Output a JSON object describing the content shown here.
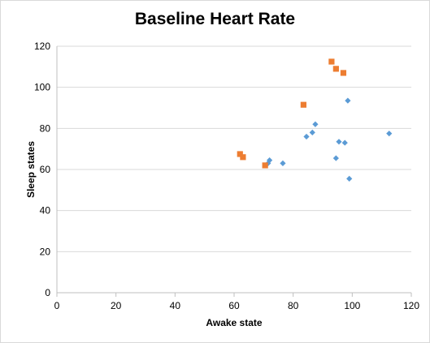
{
  "chart_data": {
    "type": "scatter",
    "title": "Baseline Heart Rate",
    "xlabel": "Awake state",
    "ylabel": "Sleep states",
    "xlim": [
      0,
      120
    ],
    "ylim": [
      0,
      120
    ],
    "xticks": [
      0,
      20,
      40,
      60,
      80,
      100,
      120
    ],
    "yticks": [
      0,
      20,
      40,
      60,
      80,
      100,
      120
    ],
    "grid": "horizontal",
    "legend": "none",
    "series": [
      {
        "marker": "diamond",
        "color": "#5b9bd5",
        "points": [
          [
            71.5,
            63
          ],
          [
            72,
            64.5
          ],
          [
            76.5,
            63
          ],
          [
            84.5,
            76
          ],
          [
            86.5,
            78
          ],
          [
            87.5,
            82
          ],
          [
            94.5,
            65.5
          ],
          [
            95.5,
            73.5
          ],
          [
            97.5,
            73
          ],
          [
            98.5,
            93.5
          ],
          [
            99,
            55.5
          ],
          [
            112.5,
            77.5
          ]
        ]
      },
      {
        "marker": "square",
        "color": "#ed7d31",
        "points": [
          [
            62,
            67.5
          ],
          [
            63,
            66
          ],
          [
            70.5,
            62
          ],
          [
            83.5,
            91.5
          ],
          [
            93,
            112.5
          ],
          [
            94.5,
            109
          ],
          [
            97,
            107
          ]
        ]
      }
    ]
  }
}
